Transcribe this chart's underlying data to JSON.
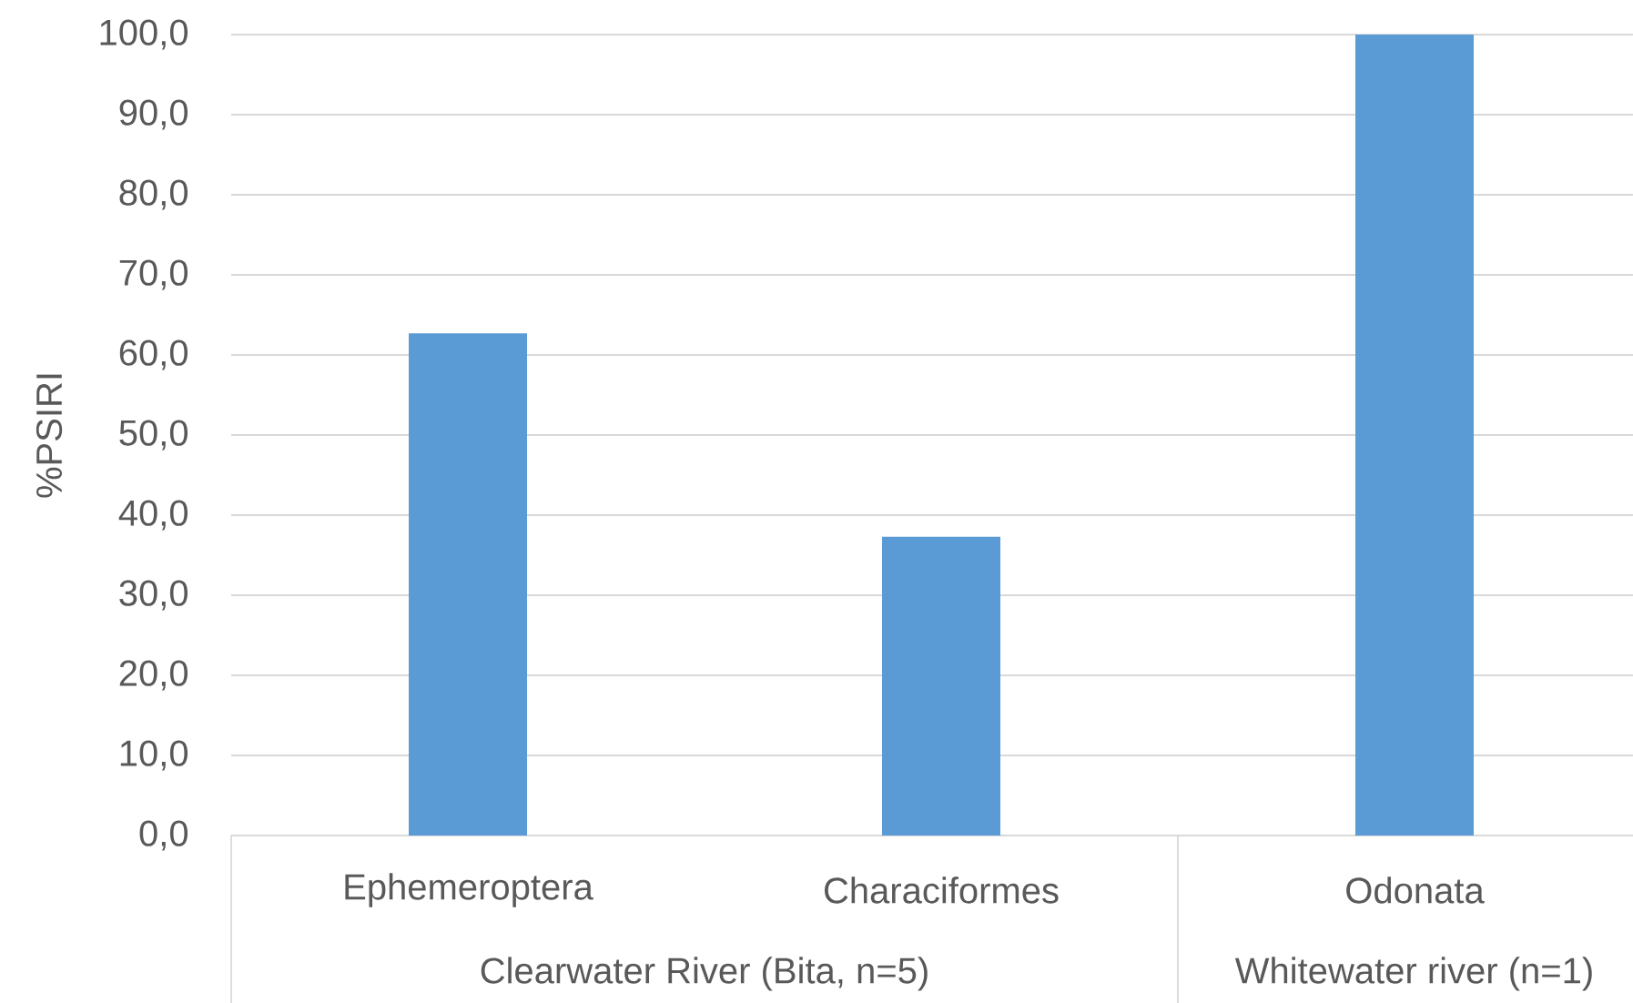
{
  "chart_data": {
    "type": "bar",
    "ylabel": "%PSIRI",
    "categories": [
      "Ephemeroptera",
      "Characiformes",
      "Odonata"
    ],
    "values": [
      62.7,
      37.3,
      100.0
    ],
    "color": "#5b9bd5",
    "ylim": [
      0,
      100
    ],
    "yticks": [
      {
        "value": 0,
        "label": "0,0"
      },
      {
        "value": 10,
        "label": "10,0"
      },
      {
        "value": 20,
        "label": "20,0"
      },
      {
        "value": 30,
        "label": "30,0"
      },
      {
        "value": 40,
        "label": "40,0"
      },
      {
        "value": 50,
        "label": "50,0"
      },
      {
        "value": 60,
        "label": "60,0"
      },
      {
        "value": 70,
        "label": "70,0"
      },
      {
        "value": 80,
        "label": "80,0"
      },
      {
        "value": 90,
        "label": "90,0"
      },
      {
        "value": 100,
        "label": "100,0"
      }
    ],
    "grid": "y",
    "annotations": [
      "Clearwater River (Bita, n=5)",
      "Whitewater river (n=1)"
    ]
  }
}
